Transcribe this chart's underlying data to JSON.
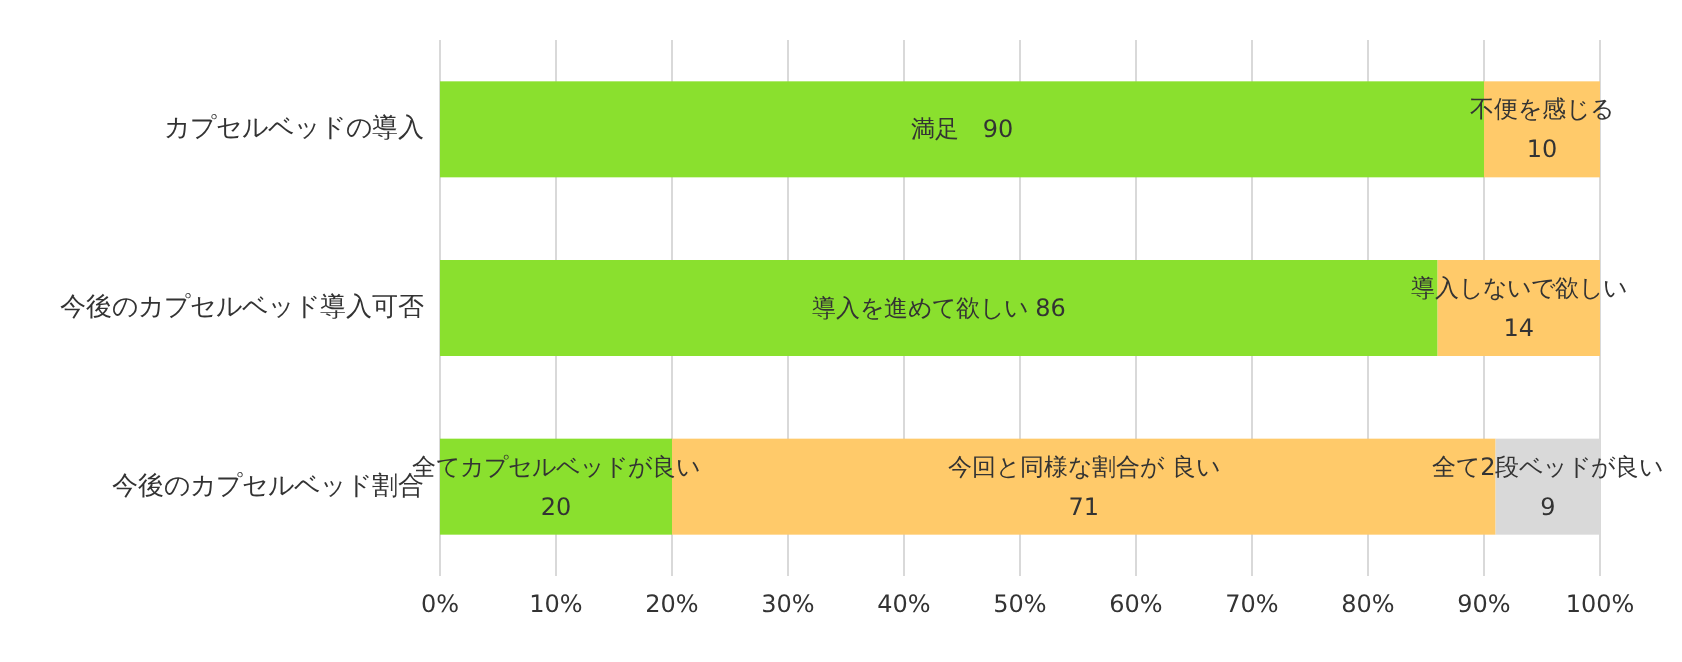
{
  "chart_data": {
    "type": "bar",
    "orientation": "horizontal",
    "stacked": true,
    "categories": [
      "カプセルベッドの導入",
      "今後のカプセルベッド導入可否",
      "今後のカプセルベッド割合"
    ],
    "series": [
      {
        "color": "#8ae02e",
        "values": [
          90,
          86,
          20
        ],
        "value_labels": [
          "満足　90",
          "導入を進めて欲しい 86",
          "全てカプセルベッドが良い\n20"
        ]
      },
      {
        "color": "#ffca6a",
        "values": [
          10,
          14,
          71
        ],
        "value_labels": [
          "不便を感じる\n10",
          "導入しないで欲しい\n14",
          "今回と同様な割合が 良い\n71"
        ]
      },
      {
        "color": "#d9d9d9",
        "values": [
          null,
          null,
          9
        ],
        "value_labels": [
          null,
          null,
          "全て2段ベッドが良い\n9"
        ]
      }
    ],
    "xlim": [
      0,
      100
    ],
    "xticks": [
      {
        "value": 0,
        "label": "0%"
      },
      {
        "value": 10,
        "label": "10%"
      },
      {
        "value": 20,
        "label": "20%"
      },
      {
        "value": 30,
        "label": "30%"
      },
      {
        "value": 40,
        "label": "40%"
      },
      {
        "value": 50,
        "label": "50%"
      },
      {
        "value": 60,
        "label": "60%"
      },
      {
        "value": 70,
        "label": "70%"
      },
      {
        "value": 80,
        "label": "80%"
      },
      {
        "value": 90,
        "label": "90%"
      },
      {
        "value": 100,
        "label": "100%"
      }
    ],
    "grid": "x"
  }
}
